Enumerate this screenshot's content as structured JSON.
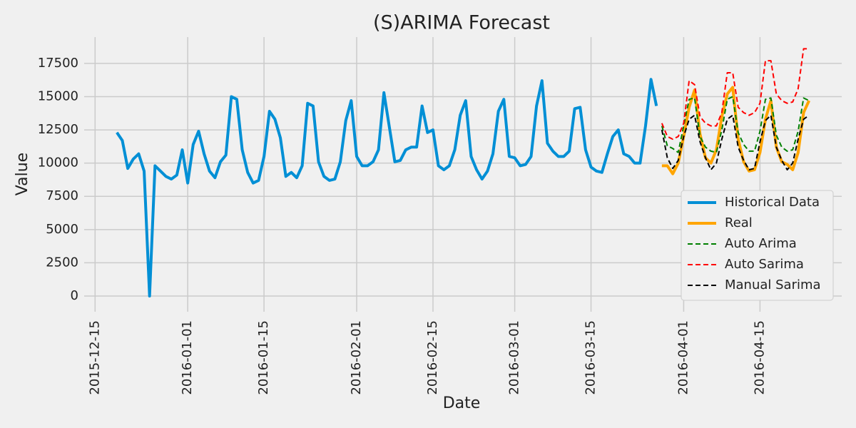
{
  "chart_data": {
    "type": "line",
    "title": "(S)ARIMA Forecast",
    "x_label": "Date",
    "y_label": "Value",
    "x": [
      "2015-12-19",
      "2015-12-20",
      "2015-12-21",
      "2015-12-22",
      "2015-12-23",
      "2015-12-24",
      "2015-12-25",
      "2015-12-26",
      "2015-12-27",
      "2015-12-28",
      "2015-12-29",
      "2015-12-30",
      "2015-12-31",
      "2016-01-01",
      "2016-01-02",
      "2016-01-03",
      "2016-01-04",
      "2016-01-05",
      "2016-01-06",
      "2016-01-07",
      "2016-01-08",
      "2016-01-09",
      "2016-01-10",
      "2016-01-11",
      "2016-01-12",
      "2016-01-13",
      "2016-01-14",
      "2016-01-15",
      "2016-01-16",
      "2016-01-17",
      "2016-01-18",
      "2016-01-19",
      "2016-01-20",
      "2016-01-21",
      "2016-01-22",
      "2016-01-23",
      "2016-01-24",
      "2016-01-25",
      "2016-01-26",
      "2016-01-27",
      "2016-01-28",
      "2016-01-29",
      "2016-01-30",
      "2016-01-31",
      "2016-02-01",
      "2016-02-02",
      "2016-02-03",
      "2016-02-04",
      "2016-02-05",
      "2016-02-06",
      "2016-02-07",
      "2016-02-08",
      "2016-02-09",
      "2016-02-10",
      "2016-02-11",
      "2016-02-12",
      "2016-02-13",
      "2016-02-14",
      "2016-02-15",
      "2016-02-16",
      "2016-02-17",
      "2016-02-18",
      "2016-02-19",
      "2016-02-20",
      "2016-02-21",
      "2016-02-22",
      "2016-02-23",
      "2016-02-24",
      "2016-02-25",
      "2016-02-26",
      "2016-02-27",
      "2016-02-28",
      "2016-02-29",
      "2016-03-01",
      "2016-03-02",
      "2016-03-03",
      "2016-03-04",
      "2016-03-05",
      "2016-03-06",
      "2016-03-07",
      "2016-03-08",
      "2016-03-09",
      "2016-03-10",
      "2016-03-11",
      "2016-03-12",
      "2016-03-13",
      "2016-03-14",
      "2016-03-15",
      "2016-03-16",
      "2016-03-17",
      "2016-03-18",
      "2016-03-19",
      "2016-03-20",
      "2016-03-21",
      "2016-03-22",
      "2016-03-23",
      "2016-03-24",
      "2016-03-25",
      "2016-03-26",
      "2016-03-27",
      "2016-03-28",
      "2016-03-29",
      "2016-03-30",
      "2016-03-31",
      "2016-04-01",
      "2016-04-02",
      "2016-04-03",
      "2016-04-04",
      "2016-04-05",
      "2016-04-06",
      "2016-04-07",
      "2016-04-08",
      "2016-04-09",
      "2016-04-10",
      "2016-04-11",
      "2016-04-12",
      "2016-04-13",
      "2016-04-14",
      "2016-04-15",
      "2016-04-16",
      "2016-04-17",
      "2016-04-18",
      "2016-04-19",
      "2016-04-20",
      "2016-04-21",
      "2016-04-22",
      "2016-04-23",
      "2016-04-24"
    ],
    "series": [
      {
        "name": "Historical Data",
        "color": "#008fd5",
        "width": 4,
        "dash": false,
        "values": [
          12300,
          11700,
          9600,
          10300,
          10700,
          9400,
          0,
          9800,
          9400,
          9000,
          8800,
          9100,
          11000,
          8500,
          11400,
          12400,
          10700,
          9400,
          8900,
          10100,
          10600,
          15000,
          14800,
          11000,
          9300,
          8500,
          8700,
          10500,
          13900,
          13300,
          11900,
          9000,
          9300,
          8900,
          9800,
          14500,
          14300,
          10100,
          9000,
          8700,
          8800,
          10100,
          13200,
          14700,
          10500,
          9800,
          9800,
          10100,
          11000,
          15300,
          12700,
          10100,
          10200,
          11000,
          11200,
          11200,
          14300,
          12300,
          12500,
          9800,
          9500,
          9800,
          11000,
          13600,
          14700,
          10500,
          9500,
          8800,
          9400,
          10700,
          13900,
          14800,
          10500,
          10400,
          9800,
          9900,
          10500,
          14300,
          16200,
          11500,
          10900,
          10500,
          10500,
          10900,
          14100,
          14200,
          11000,
          9700,
          9400,
          9300,
          10700,
          12000,
          12500,
          10700,
          10500,
          10000,
          10000,
          12800,
          16300,
          14300,
          null,
          null,
          null,
          null,
          null,
          null,
          null,
          null,
          null,
          null,
          null,
          null,
          null,
          null,
          null,
          null,
          null,
          null,
          null,
          null,
          null,
          null,
          null,
          null,
          null,
          null,
          null,
          null
        ]
      },
      {
        "name": "Real",
        "color": "#ffa500",
        "width": 4,
        "dash": false,
        "values": [
          null,
          null,
          null,
          null,
          null,
          null,
          null,
          null,
          null,
          null,
          null,
          null,
          null,
          null,
          null,
          null,
          null,
          null,
          null,
          null,
          null,
          null,
          null,
          null,
          null,
          null,
          null,
          null,
          null,
          null,
          null,
          null,
          null,
          null,
          null,
          null,
          null,
          null,
          null,
          null,
          null,
          null,
          null,
          null,
          null,
          null,
          null,
          null,
          null,
          null,
          null,
          null,
          null,
          null,
          null,
          null,
          null,
          null,
          null,
          null,
          null,
          null,
          null,
          null,
          null,
          null,
          null,
          null,
          null,
          null,
          null,
          null,
          null,
          null,
          null,
          null,
          null,
          null,
          null,
          null,
          null,
          null,
          null,
          null,
          null,
          null,
          null,
          null,
          null,
          null,
          null,
          null,
          null,
          null,
          null,
          null,
          null,
          null,
          null,
          null,
          9800,
          9800,
          9200,
          10000,
          12000,
          14200,
          15500,
          12200,
          10400,
          10000,
          11000,
          13500,
          15200,
          15700,
          11800,
          10100,
          9400,
          9500,
          10800,
          13300,
          14700,
          11200,
          10100,
          9900,
          9500,
          10800,
          13800,
          14700
        ]
      },
      {
        "name": "Auto Arima",
        "color": "#008000",
        "width": 2,
        "dash": true,
        "values": [
          null,
          null,
          null,
          null,
          null,
          null,
          null,
          null,
          null,
          null,
          null,
          null,
          null,
          null,
          null,
          null,
          null,
          null,
          null,
          null,
          null,
          null,
          null,
          null,
          null,
          null,
          null,
          null,
          null,
          null,
          null,
          null,
          null,
          null,
          null,
          null,
          null,
          null,
          null,
          null,
          null,
          null,
          null,
          null,
          null,
          null,
          null,
          null,
          null,
          null,
          null,
          null,
          null,
          null,
          null,
          null,
          null,
          null,
          null,
          null,
          null,
          null,
          null,
          null,
          null,
          null,
          null,
          null,
          null,
          null,
          null,
          null,
          null,
          null,
          null,
          null,
          null,
          null,
          null,
          null,
          null,
          null,
          null,
          null,
          null,
          null,
          null,
          null,
          null,
          null,
          null,
          null,
          null,
          null,
          null,
          null,
          null,
          null,
          null,
          null,
          12800,
          11300,
          11100,
          10800,
          12800,
          14800,
          14900,
          12000,
          11200,
          10900,
          10800,
          12500,
          14800,
          15000,
          12300,
          11400,
          10900,
          10900,
          12400,
          14800,
          14900,
          12100,
          11200,
          10900,
          11000,
          12400,
          14900,
          14700
        ]
      },
      {
        "name": "Auto Sarima",
        "color": "#ff0000",
        "width": 2,
        "dash": true,
        "values": [
          null,
          null,
          null,
          null,
          null,
          null,
          null,
          null,
          null,
          null,
          null,
          null,
          null,
          null,
          null,
          null,
          null,
          null,
          null,
          null,
          null,
          null,
          null,
          null,
          null,
          null,
          null,
          null,
          null,
          null,
          null,
          null,
          null,
          null,
          null,
          null,
          null,
          null,
          null,
          null,
          null,
          null,
          null,
          null,
          null,
          null,
          null,
          null,
          null,
          null,
          null,
          null,
          null,
          null,
          null,
          null,
          null,
          null,
          null,
          null,
          null,
          null,
          null,
          null,
          null,
          null,
          null,
          null,
          null,
          null,
          null,
          null,
          null,
          null,
          null,
          null,
          null,
          null,
          null,
          null,
          null,
          null,
          null,
          null,
          null,
          null,
          null,
          null,
          null,
          null,
          null,
          null,
          null,
          null,
          null,
          null,
          null,
          null,
          null,
          null,
          13000,
          12000,
          11800,
          12000,
          13000,
          16200,
          15900,
          13500,
          13000,
          12800,
          12800,
          13800,
          16800,
          16800,
          14200,
          13800,
          13600,
          13800,
          14500,
          17700,
          17700,
          15200,
          14700,
          14500,
          14600,
          15600,
          18600,
          18600
        ]
      },
      {
        "name": "Manual Sarima",
        "color": "#000000",
        "width": 2,
        "dash": true,
        "values": [
          null,
          null,
          null,
          null,
          null,
          null,
          null,
          null,
          null,
          null,
          null,
          null,
          null,
          null,
          null,
          null,
          null,
          null,
          null,
          null,
          null,
          null,
          null,
          null,
          null,
          null,
          null,
          null,
          null,
          null,
          null,
          null,
          null,
          null,
          null,
          null,
          null,
          null,
          null,
          null,
          null,
          null,
          null,
          null,
          null,
          null,
          null,
          null,
          null,
          null,
          null,
          null,
          null,
          null,
          null,
          null,
          null,
          null,
          null,
          null,
          null,
          null,
          null,
          null,
          null,
          null,
          null,
          null,
          null,
          null,
          null,
          null,
          null,
          null,
          null,
          null,
          null,
          null,
          null,
          null,
          null,
          null,
          null,
          null,
          null,
          null,
          null,
          null,
          null,
          null,
          null,
          null,
          null,
          null,
          null,
          null,
          null,
          null,
          null,
          null,
          12500,
          10400,
          9600,
          10200,
          12000,
          13300,
          13600,
          11600,
          10400,
          9500,
          10000,
          11800,
          13300,
          13600,
          11200,
          10200,
          9500,
          9600,
          11600,
          13200,
          13600,
          11200,
          10200,
          9500,
          10000,
          11800,
          13300,
          13600
        ]
      }
    ],
    "xlim": [
      "2015-12-13",
      "2016-04-30"
    ],
    "xticks": [
      "2015-12-15",
      "2016-01-01",
      "2016-01-15",
      "2016-02-01",
      "2016-02-15",
      "2016-03-01",
      "2016-03-15",
      "2016-04-01",
      "2016-04-15"
    ],
    "ylim": [
      -1180,
      19480
    ],
    "yticks": [
      0,
      2500,
      5000,
      7500,
      10000,
      12500,
      15000,
      17500
    ],
    "grid": true,
    "legend": "lower right"
  }
}
